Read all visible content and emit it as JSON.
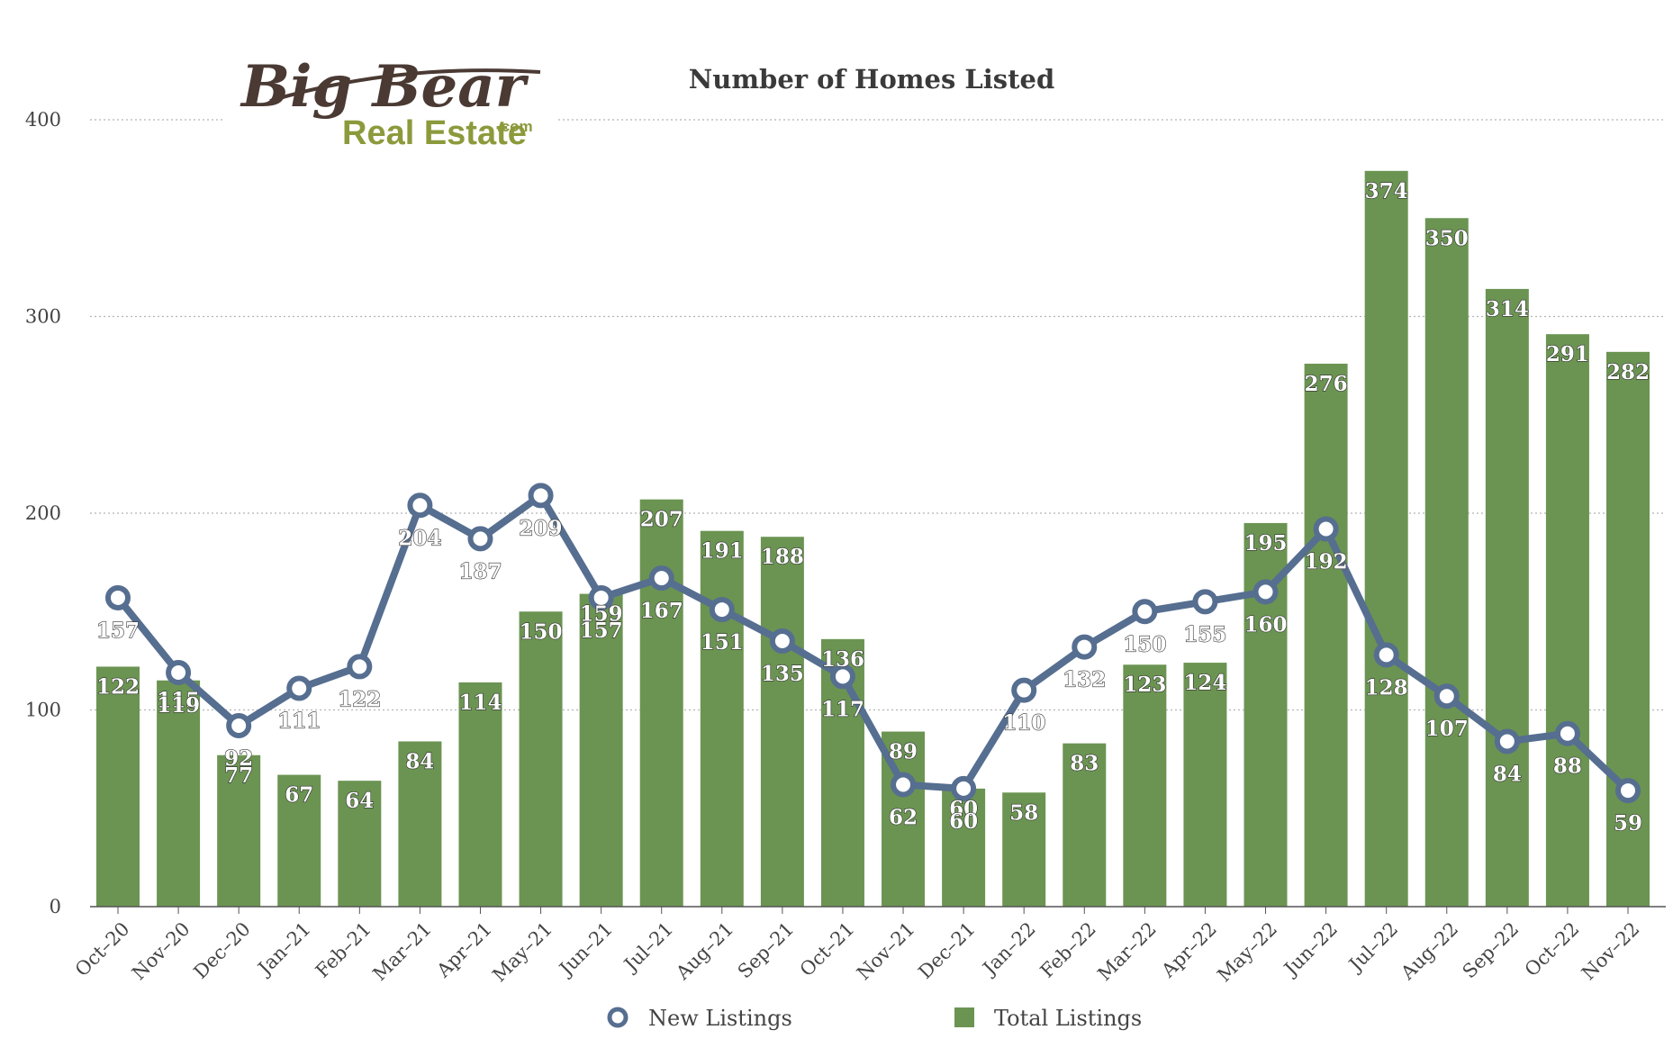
{
  "logo": {
    "line1": "Big Bear",
    "line2": "Real Estate",
    "suffix": ".com"
  },
  "colors": {
    "bar": "#6b9452",
    "line": "#566e90",
    "grid": "#b5b5b5",
    "axis": "#555555"
  },
  "chart_data": {
    "type": "bar",
    "title": "Number of Homes Listed",
    "xlabel": "",
    "ylabel": "",
    "ylim": [
      0,
      400
    ],
    "yticks": [
      0,
      100,
      200,
      300,
      400
    ],
    "grid": true,
    "legend_position": "bottom",
    "categories": [
      "Oct–20",
      "Nov–20",
      "Dec–20",
      "Jan–21",
      "Feb–21",
      "Mar–21",
      "Apr–21",
      "May–21",
      "Jun–21",
      "Jul–21",
      "Aug–21",
      "Sep–21",
      "Oct–21",
      "Nov–21",
      "Dec–21",
      "Jan–22",
      "Feb–22",
      "Mar–22",
      "Apr–22",
      "May–22",
      "Jun–22",
      "Jul–22",
      "Aug–22",
      "Sep–22",
      "Oct–22",
      "Nov–22"
    ],
    "series": [
      {
        "name": "New Listings",
        "type": "line",
        "values": [
          157,
          119,
          92,
          111,
          122,
          204,
          187,
          209,
          157,
          167,
          151,
          135,
          117,
          62,
          60,
          110,
          132,
          150,
          155,
          160,
          192,
          128,
          107,
          84,
          88,
          59
        ]
      },
      {
        "name": "Total Listings",
        "type": "bar",
        "values": [
          122,
          115,
          77,
          67,
          64,
          84,
          114,
          150,
          159,
          207,
          191,
          188,
          136,
          89,
          60,
          58,
          83,
          123,
          124,
          195,
          276,
          374,
          350,
          314,
          291,
          282
        ]
      }
    ]
  }
}
